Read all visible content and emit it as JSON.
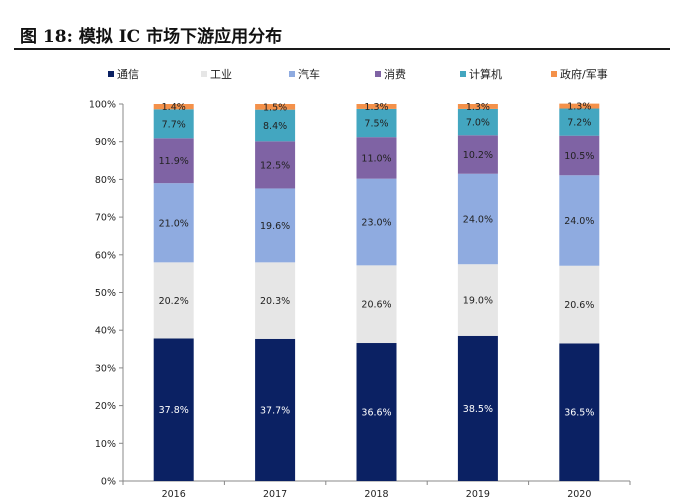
{
  "figure": {
    "title": "图 18: 模拟 IC 市场下游应用分布"
  },
  "colors": {
    "通信": "#0b2163",
    "工业": "#e6e6e6",
    "汽车": "#8fabe0",
    "消费": "#7f63a4",
    "计算机": "#43a6c0",
    "政府/军事": "#f4914a"
  },
  "chart_data": {
    "type": "bar",
    "stacked": true,
    "categories": [
      "2016",
      "2017",
      "2018",
      "2019",
      "2020"
    ],
    "series": [
      {
        "name": "通信",
        "values": [
          37.8,
          37.7,
          36.6,
          38.5,
          36.5
        ]
      },
      {
        "name": "工业",
        "values": [
          20.2,
          20.3,
          20.6,
          19.0,
          20.6
        ]
      },
      {
        "name": "汽车",
        "values": [
          21.0,
          19.6,
          23.0,
          24.0,
          24.0
        ]
      },
      {
        "name": "消费",
        "values": [
          11.9,
          12.5,
          11.0,
          10.2,
          10.5
        ]
      },
      {
        "name": "计算机",
        "values": [
          7.7,
          8.4,
          7.5,
          7.0,
          7.2
        ]
      },
      {
        "name": "政府/军事",
        "values": [
          1.4,
          1.5,
          1.3,
          1.3,
          1.3
        ]
      }
    ],
    "ylim": [
      0,
      100
    ],
    "yticks": [
      "0%",
      "10%",
      "20%",
      "30%",
      "40%",
      "50%",
      "60%",
      "70%",
      "80%",
      "90%",
      "100%"
    ],
    "value_suffix": "%",
    "legend": "top",
    "grid": false
  }
}
